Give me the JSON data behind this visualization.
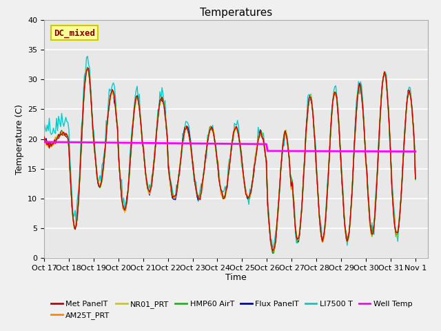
{
  "title": "Temperatures",
  "xlabel": "Time",
  "ylabel": "Temperature (C)",
  "ylim": [
    0,
    40
  ],
  "bg_color": "#e8e8e8",
  "fig_bg_color": "#f0f0f0",
  "grid_color": "#ffffff",
  "annotation_text": "DC_mixed",
  "annotation_color": "#8b0000",
  "annotation_bg": "#ffff99",
  "annotation_border": "#cccc00",
  "series_colors": {
    "MetPanelT": "#cc0000",
    "AM25T_PRT": "#ff8800",
    "NR01_PRT": "#cccc00",
    "HMP60AirT": "#00cc00",
    "FluxPanelT": "#0000cc",
    "LI7500T": "#00cccc",
    "WellTemp": "#ff00ff"
  },
  "legend_labels": [
    "Met PanelT",
    "AM25T_PRT",
    "NR01_PRT",
    "HMP60 AirT",
    "Flux PanelT",
    "LI7500 T",
    "Well Temp"
  ],
  "xtick_labels": [
    "Oct 17",
    "Oct 18",
    "Oct 19",
    "Oct 20",
    "Oct 21",
    "Oct 22",
    "Oct 23",
    "Oct 24",
    "Oct 25",
    "Oct 26",
    "Oct 27",
    "Oct 28",
    "Oct 29",
    "Oct 30",
    "Oct 31",
    "Nov 1"
  ],
  "xtick_positions": [
    0,
    1,
    2,
    3,
    4,
    5,
    6,
    7,
    8,
    9,
    10,
    11,
    12,
    13,
    14,
    15
  ]
}
